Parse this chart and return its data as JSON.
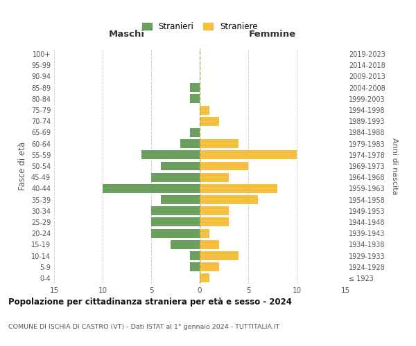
{
  "age_groups": [
    "100+",
    "95-99",
    "90-94",
    "85-89",
    "80-84",
    "75-79",
    "70-74",
    "65-69",
    "60-64",
    "55-59",
    "50-54",
    "45-49",
    "40-44",
    "35-39",
    "30-34",
    "25-29",
    "20-24",
    "15-19",
    "10-14",
    "5-9",
    "0-4"
  ],
  "birth_years": [
    "≤ 1923",
    "1924-1928",
    "1929-1933",
    "1934-1938",
    "1939-1943",
    "1944-1948",
    "1949-1953",
    "1954-1958",
    "1959-1963",
    "1964-1968",
    "1969-1973",
    "1974-1978",
    "1979-1983",
    "1984-1988",
    "1989-1993",
    "1994-1998",
    "1999-2003",
    "2004-2008",
    "2009-2013",
    "2014-2018",
    "2019-2023"
  ],
  "males": [
    0,
    0,
    0,
    1,
    1,
    0,
    0,
    1,
    2,
    6,
    4,
    5,
    10,
    4,
    5,
    5,
    5,
    3,
    1,
    1,
    0
  ],
  "females": [
    0,
    0,
    0,
    0,
    0,
    1,
    2,
    0,
    4,
    10,
    5,
    3,
    8,
    6,
    3,
    3,
    1,
    2,
    4,
    2,
    1
  ],
  "male_color": "#6a9f5e",
  "female_color": "#f5c040",
  "title": "Popolazione per cittadinanza straniera per età e sesso - 2024",
  "subtitle": "COMUNE DI ISCHIA DI CASTRO (VT) - Dati ISTAT al 1° gennaio 2024 - TUTTITALIA.IT",
  "xlabel_left": "Maschi",
  "xlabel_right": "Femmine",
  "ylabel_left": "Fasce di età",
  "ylabel_right": "Anni di nascita",
  "legend_male": "Stranieri",
  "legend_female": "Straniere",
  "xlim": 15,
  "bar_height": 0.8,
  "background_color": "#ffffff",
  "grid_color": "#d0d0d0",
  "dashed_line_color": "#aaa860",
  "tick_color": "#555555",
  "label_color": "#333333"
}
